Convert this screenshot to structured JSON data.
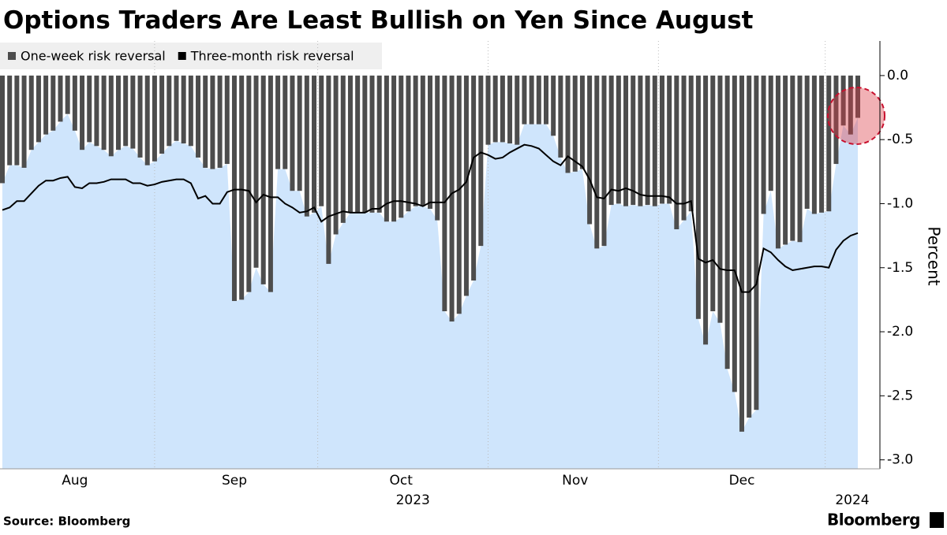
{
  "chart_data": {
    "type": "bar+line",
    "title": "Options Traders Are Least Bullish on Yen Since August",
    "y_label": "Percent",
    "source": "Source: Bloomberg",
    "brand": "Bloomberg",
    "year_labels": [
      "2023",
      "2024"
    ],
    "categories": [
      null,
      null,
      null,
      null,
      null,
      null,
      null,
      null,
      null,
      null,
      "Aug",
      null,
      null,
      null,
      null,
      null,
      null,
      null,
      null,
      null,
      null,
      null,
      null,
      null,
      null,
      null,
      null,
      null,
      null,
      null,
      null,
      null,
      "Sep",
      null,
      null,
      null,
      null,
      null,
      null,
      null,
      null,
      null,
      null,
      null,
      null,
      null,
      null,
      null,
      null,
      null,
      null,
      null,
      null,
      null,
      null,
      "Oct",
      null,
      null,
      null,
      null,
      null,
      null,
      null,
      null,
      null,
      null,
      null,
      null,
      null,
      null,
      null,
      null,
      null,
      null,
      null,
      null,
      null,
      null,
      null,
      "Nov",
      null,
      null,
      null,
      null,
      null,
      null,
      null,
      null,
      null,
      null,
      null,
      null,
      null,
      null,
      null,
      null,
      null,
      null,
      null,
      null,
      null,
      null,
      "Dec",
      null,
      null,
      null,
      null,
      null,
      null,
      null,
      null,
      null,
      null,
      null,
      null,
      null,
      null,
      null,
      null
    ],
    "series": [
      {
        "name": "One-week risk reversal",
        "kind": "bar",
        "color": "#4d4d4d",
        "area_color": "#cfe5fc",
        "values": [
          -0.84,
          -0.7,
          -0.7,
          -0.72,
          -0.58,
          -0.52,
          -0.46,
          -0.43,
          -0.36,
          -0.3,
          -0.43,
          -0.58,
          -0.52,
          -0.55,
          -0.58,
          -0.63,
          -0.58,
          -0.55,
          -0.57,
          -0.64,
          -0.7,
          -0.67,
          -0.61,
          -0.55,
          -0.51,
          -0.53,
          -0.55,
          -0.64,
          -0.72,
          -0.73,
          -0.72,
          -0.69,
          -1.76,
          -1.75,
          -1.69,
          -1.5,
          -1.63,
          -1.69,
          -0.73,
          -0.73,
          -0.9,
          -0.9,
          -1.1,
          -1.07,
          -1.02,
          -1.47,
          -1.24,
          -1.15,
          -1.07,
          -1.07,
          -1.07,
          -1.07,
          -1.07,
          -1.14,
          -1.14,
          -1.11,
          -1.06,
          -1.02,
          -1.02,
          -1.04,
          -1.13,
          -1.84,
          -1.92,
          -1.86,
          -1.72,
          -1.6,
          -1.33,
          -0.54,
          -0.52,
          -0.52,
          -0.53,
          -0.54,
          -0.38,
          -0.38,
          -0.38,
          -0.38,
          -0.47,
          -0.64,
          -0.76,
          -0.75,
          -0.73,
          -1.16,
          -1.35,
          -1.33,
          -1.01,
          -1.0,
          -1.02,
          -1.01,
          -1.02,
          -1.01,
          -1.02,
          -1.0,
          -1.0,
          -1.2,
          -1.13,
          -1.06,
          -1.9,
          -2.1,
          -1.84,
          -1.93,
          -2.29,
          -2.47,
          -2.78,
          -2.67,
          -2.61,
          -1.08,
          -0.9,
          -1.35,
          -1.32,
          -1.29,
          -1.3,
          -1.04,
          -1.08,
          -1.07,
          -1.06,
          -0.69,
          -0.39,
          -0.46,
          -0.33
        ]
      },
      {
        "name": "Three-month risk reversal",
        "kind": "line",
        "color": "#000000",
        "values": [
          -1.05,
          -1.03,
          -0.98,
          -0.98,
          -0.92,
          -0.86,
          -0.82,
          -0.82,
          -0.8,
          -0.79,
          -0.87,
          -0.88,
          -0.84,
          -0.84,
          -0.83,
          -0.81,
          -0.81,
          -0.81,
          -0.84,
          -0.84,
          -0.86,
          -0.85,
          -0.83,
          -0.82,
          -0.81,
          -0.81,
          -0.84,
          -0.96,
          -0.94,
          -1.0,
          -1.0,
          -0.91,
          -0.89,
          -0.89,
          -0.9,
          -0.99,
          -0.93,
          -0.95,
          -0.95,
          -1.0,
          -1.03,
          -1.07,
          -1.06,
          -1.03,
          -1.14,
          -1.1,
          -1.08,
          -1.06,
          -1.07,
          -1.07,
          -1.07,
          -1.04,
          -1.04,
          -1.0,
          -0.98,
          -0.98,
          -0.99,
          -1.0,
          -1.02,
          -0.99,
          -0.99,
          -0.99,
          -0.92,
          -0.89,
          -0.83,
          -0.64,
          -0.6,
          -0.62,
          -0.65,
          -0.64,
          -0.6,
          -0.57,
          -0.54,
          -0.55,
          -0.57,
          -0.62,
          -0.67,
          -0.7,
          -0.63,
          -0.67,
          -0.71,
          -0.81,
          -0.95,
          -0.96,
          -0.89,
          -0.9,
          -0.88,
          -0.9,
          -0.93,
          -0.94,
          -0.94,
          -0.94,
          -0.95,
          -1.0,
          -1.0,
          -0.98,
          -1.43,
          -1.46,
          -1.44,
          -1.51,
          -1.52,
          -1.52,
          -1.69,
          -1.69,
          -1.63,
          -1.35,
          -1.38,
          -1.44,
          -1.49,
          -1.52,
          -1.51,
          -1.5,
          -1.49,
          -1.49,
          -1.5,
          -1.36,
          -1.29,
          -1.25,
          -1.23
        ]
      }
    ],
    "ylim": [
      -3.07,
      0.27
    ],
    "yticks": [
      {
        "value": 0,
        "label": "0.0"
      },
      -0.5,
      {
        "value": -1,
        "label": "-1.0"
      },
      -1.5,
      {
        "value": -2,
        "label": "-2.0"
      },
      -2.5,
      {
        "value": -3,
        "label": "-3.0"
      }
    ],
    "x_grid": true
  }
}
